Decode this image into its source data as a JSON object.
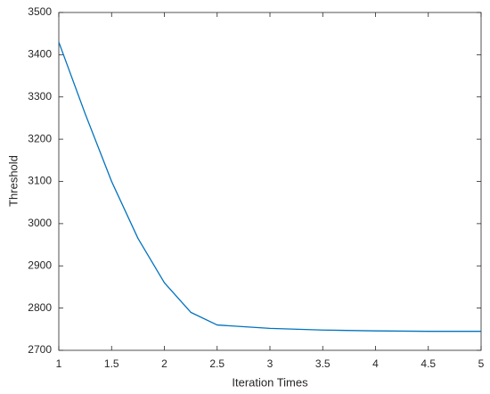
{
  "chart_data": {
    "type": "line",
    "x_label": "Iteration Times",
    "y_label": "Threshold",
    "x": [
      1,
      1.25,
      1.5,
      1.75,
      2,
      2.25,
      2.5,
      3,
      3.5,
      4,
      4.5,
      5
    ],
    "series": [
      {
        "color": "#0072bd",
        "values": [
          3430,
          3260,
          3100,
          2965,
          2860,
          2790,
          2760,
          2752,
          2748,
          2746,
          2745,
          2745
        ]
      }
    ],
    "xlim": [
      1,
      5
    ],
    "xticks": [
      1,
      1.5,
      2,
      2.5,
      3,
      3.5,
      4,
      4.5,
      5
    ],
    "ylim": [
      2700,
      3500
    ],
    "yticks": [
      2700,
      2800,
      2900,
      3000,
      3100,
      3200,
      3300,
      3400,
      3500
    ]
  }
}
